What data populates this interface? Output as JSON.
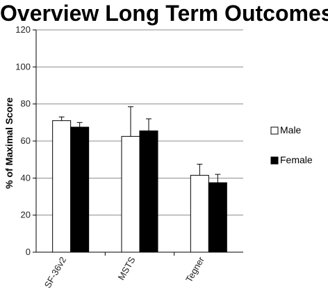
{
  "chart_data": {
    "type": "bar",
    "title": "Overview Long Term Outcomes",
    "ylabel": "% of Maximal Score",
    "xlabel": "",
    "categories": [
      "SF-36v2",
      "MSTS",
      "Tegner"
    ],
    "ylim": [
      0,
      120
    ],
    "yticks": [
      0,
      20,
      40,
      60,
      80,
      100,
      120
    ],
    "grid": true,
    "legend_position": "right",
    "series": [
      {
        "name": "Male",
        "color": "#ffffff",
        "values": [
          71,
          62.5,
          41.5
        ],
        "errors": [
          2,
          16,
          6
        ]
      },
      {
        "name": "Female",
        "color": "#000000",
        "values": [
          67.5,
          65.5,
          37.5
        ],
        "errors": [
          2.5,
          6.5,
          4.5
        ]
      }
    ]
  }
}
